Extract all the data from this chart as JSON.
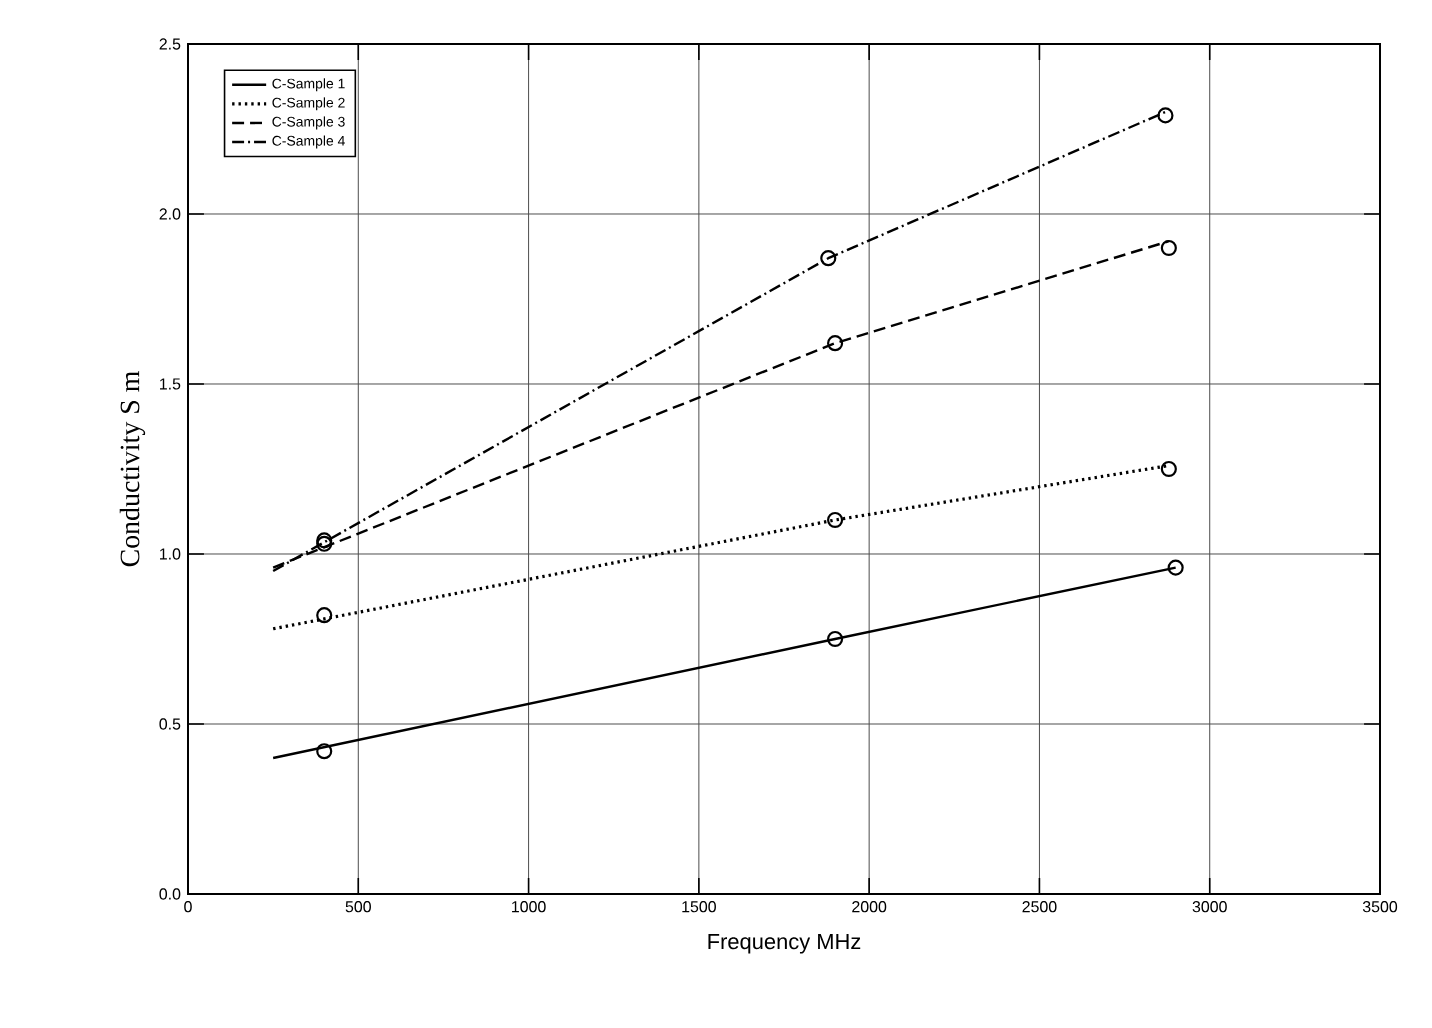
{
  "chart_data": {
    "type": "line",
    "xlabel": "Frequency MHz",
    "ylabel": "Conductivity S m",
    "xlim": [
      0,
      3500
    ],
    "xticks": [
      0,
      500,
      1000,
      1500,
      2000,
      2500,
      3000,
      3500
    ],
    "ylim": [
      0.0,
      2.5
    ],
    "yticks": [
      {
        "value": 0,
        "label": "0.0"
      },
      {
        "value": 0.5,
        "label": "0.5"
      },
      {
        "value": 1,
        "label": "1.0"
      },
      {
        "value": 1.5,
        "label": "1.5"
      },
      {
        "value": 2,
        "label": "2.0"
      },
      {
        "value": 2.5,
        "label": "2.5"
      }
    ],
    "grid": true,
    "legend": "top left",
    "series": [
      {
        "name": "C-Sample 1",
        "color": "#000000",
        "line_style": "solid",
        "x": [
          250,
          1900,
          2900
        ],
        "values": [
          0.4,
          0.75,
          0.96
        ]
      },
      {
        "name": "C-Sample 2",
        "color": "#000000",
        "line_style": "dotted",
        "x": [
          250,
          1900,
          2880
        ],
        "values": [
          0.78,
          1.1,
          1.26
        ]
      },
      {
        "name": "C-Sample 3",
        "color": "#000000",
        "line_style": "dashed",
        "x": [
          250,
          1900,
          2880
        ],
        "values": [
          0.96,
          1.62,
          1.92
        ]
      },
      {
        "name": "C-Sample 4",
        "color": "#000000",
        "line_style": "dashdot",
        "x": [
          250,
          1880,
          2870
        ],
        "values": [
          0.95,
          1.87,
          2.3
        ]
      },
      {
        "type": "scatter",
        "marker": "circle",
        "color": "#000000",
        "x": [
          400,
          1900,
          2900
        ],
        "values": [
          0.42,
          0.75,
          0.96
        ]
      },
      {
        "type": "scatter",
        "marker": "circle",
        "color": "#000000",
        "x": [
          400,
          1900,
          2880
        ],
        "values": [
          0.82,
          1.1,
          1.25
        ]
      },
      {
        "type": "scatter",
        "marker": "circle",
        "color": "#000000",
        "x": [
          400,
          1900,
          2880
        ],
        "values": [
          1.04,
          1.62,
          1.9
        ]
      },
      {
        "type": "scatter",
        "marker": "circle",
        "color": "#000000",
        "x": [
          400,
          1880,
          2870
        ],
        "values": [
          1.03,
          1.87,
          2.29
        ]
      }
    ]
  }
}
